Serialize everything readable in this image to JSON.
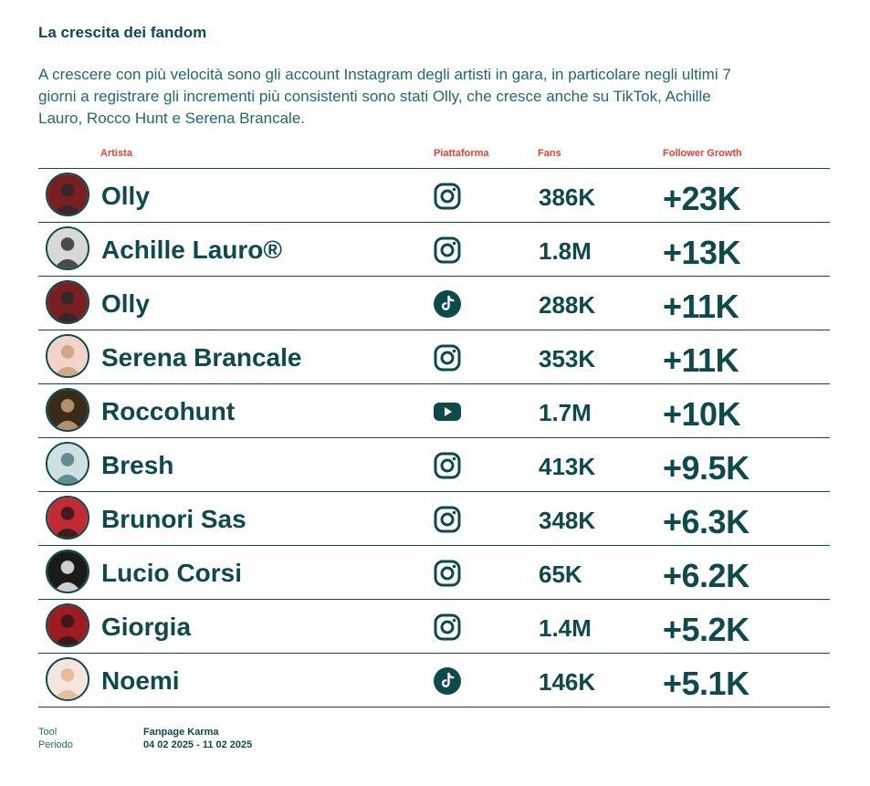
{
  "title": "La crescita dei fandom",
  "description": "A crescere con più velocità sono gli account Instagram degli artisti in gara, in particolare negli ultimi 7 giorni a registrare gli incrementi più consistenti sono stati Olly, che cresce anche su TikTok, Achille Lauro, Rocco Hunt e Serena Brancale.",
  "columns": {
    "artist": "Artista",
    "platform": "Piattaforma",
    "fans": "Fans",
    "growth": "Follower Growth"
  },
  "colors": {
    "primary": "#0d4a4c",
    "header_accent": "#e8412f",
    "text_light": "#1e6a6e"
  },
  "rows": [
    {
      "artist": "Olly",
      "platform": "instagram-icon",
      "fans": "386K",
      "growth": "+23K"
    },
    {
      "artist": "Achille Lauro®",
      "platform": "instagram-icon",
      "fans": "1.8M",
      "growth": "+13K"
    },
    {
      "artist": "Olly",
      "platform": "tiktok-icon",
      "fans": "288K",
      "growth": "+11K"
    },
    {
      "artist": "Serena Brancale",
      "platform": "instagram-icon",
      "fans": "353K",
      "growth": "+11K"
    },
    {
      "artist": "Roccohunt",
      "platform": "youtube-icon",
      "fans": "1.7M",
      "growth": "+10K"
    },
    {
      "artist": "Bresh",
      "platform": "instagram-icon",
      "fans": "413K",
      "growth": "+9.5K"
    },
    {
      "artist": "Brunori Sas",
      "platform": "instagram-icon",
      "fans": "348K",
      "growth": "+6.3K"
    },
    {
      "artist": "Lucio Corsi",
      "platform": "instagram-icon",
      "fans": "65K",
      "growth": "+6.2K"
    },
    {
      "artist": "Giorgia",
      "platform": "instagram-icon",
      "fans": "1.4M",
      "growth": "+5.2K"
    },
    {
      "artist": "Noemi",
      "platform": "tiktok-icon",
      "fans": "146K",
      "growth": "+5.1K"
    }
  ],
  "footer": {
    "tool_label": "Tool",
    "tool_value": "Fanpage Karma",
    "period_label": "Periodo",
    "period_value": "04 02 2025 - 11 02 2025"
  }
}
